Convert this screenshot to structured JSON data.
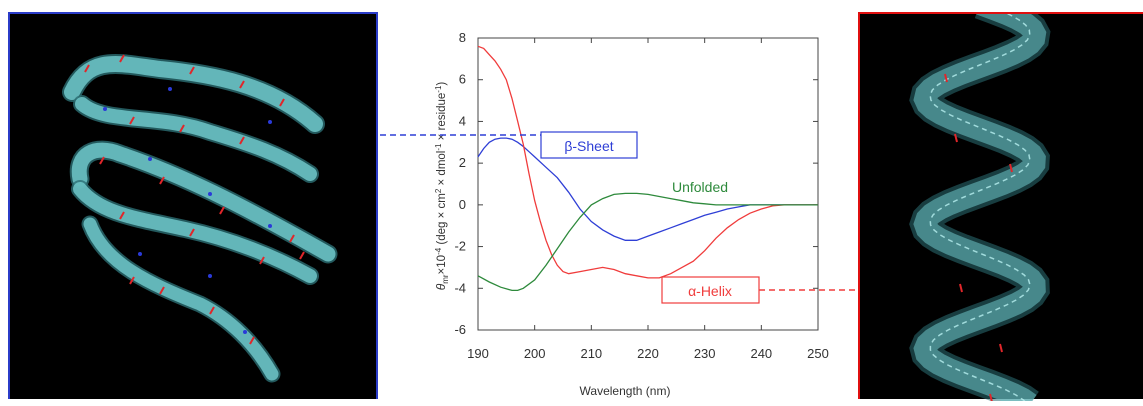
{
  "colors": {
    "beta_sheet": "#2f3fd6",
    "alpha_helix": "#f03c3c",
    "unfolded": "#2e8a3c",
    "ribbon": "#6fc7c9",
    "left_border": "#2b3cc8",
    "right_border": "#e01010"
  },
  "left_image": {
    "depicts": "beta-sheet-ribbon",
    "icon": "protein-ribbon"
  },
  "right_image": {
    "depicts": "alpha-helix-ribbon",
    "icon": "protein-ribbon"
  },
  "chart_data": {
    "type": "line",
    "xlabel": "Wavelength (nm)",
    "ylabel_parts": [
      "θ",
      "mr",
      "×10",
      "-4",
      " (deg × cm",
      "2",
      " × dmol",
      "-1",
      " × residue",
      "-1",
      ")"
    ],
    "xlim": [
      190,
      250
    ],
    "ylim": [
      -6,
      8
    ],
    "xticks": [
      190,
      200,
      210,
      220,
      230,
      240,
      250
    ],
    "yticks": [
      -6,
      -4,
      -2,
      0,
      2,
      4,
      6,
      8
    ],
    "grid": false,
    "series": [
      {
        "name": "β-Sheet",
        "key": "beta",
        "x": [
          190,
          191,
          192,
          193,
          194,
          195,
          196,
          197,
          198,
          199,
          200,
          202,
          204,
          206,
          208,
          210,
          212,
          214,
          216,
          218,
          220,
          222,
          224,
          226,
          228,
          230,
          232,
          234,
          236,
          238,
          240,
          245,
          250
        ],
        "y": [
          2.3,
          2.7,
          3.0,
          3.15,
          3.2,
          3.2,
          3.15,
          3.0,
          2.8,
          2.55,
          2.3,
          1.8,
          1.3,
          0.6,
          -0.2,
          -0.8,
          -1.2,
          -1.5,
          -1.7,
          -1.7,
          -1.5,
          -1.3,
          -1.1,
          -0.9,
          -0.7,
          -0.5,
          -0.35,
          -0.2,
          -0.1,
          0.0,
          0.0,
          0.0,
          0.0
        ]
      },
      {
        "name": "α-Helix",
        "key": "alpha",
        "x": [
          190,
          191,
          192,
          193,
          194,
          195,
          196,
          197,
          198,
          199,
          200,
          201,
          202,
          203,
          204,
          205,
          206,
          208,
          210,
          212,
          214,
          216,
          218,
          220,
          222,
          224,
          226,
          228,
          230,
          232,
          234,
          236,
          238,
          240,
          242,
          244,
          246,
          250
        ],
        "y": [
          7.6,
          7.5,
          7.2,
          6.9,
          6.5,
          6.0,
          5.1,
          4.0,
          2.9,
          1.5,
          0.2,
          -0.8,
          -1.7,
          -2.4,
          -2.9,
          -3.2,
          -3.3,
          -3.2,
          -3.1,
          -3.0,
          -3.1,
          -3.3,
          -3.4,
          -3.5,
          -3.5,
          -3.3,
          -3.0,
          -2.7,
          -2.2,
          -1.6,
          -1.1,
          -0.7,
          -0.4,
          -0.2,
          -0.05,
          0.0,
          0.0,
          0.0
        ]
      },
      {
        "name": "Unfolded",
        "key": "unfolded",
        "x": [
          190,
          192,
          194,
          196,
          197,
          198,
          200,
          202,
          204,
          206,
          208,
          210,
          212,
          214,
          216,
          218,
          220,
          222,
          224,
          226,
          228,
          230,
          232,
          235,
          240,
          245,
          250
        ],
        "y": [
          -3.4,
          -3.7,
          -3.95,
          -4.1,
          -4.1,
          -4.0,
          -3.6,
          -2.9,
          -2.1,
          -1.3,
          -0.6,
          0.0,
          0.3,
          0.5,
          0.55,
          0.55,
          0.5,
          0.4,
          0.3,
          0.2,
          0.1,
          0.05,
          0.0,
          0.0,
          0.0,
          0.0,
          0.0
        ]
      }
    ]
  }
}
